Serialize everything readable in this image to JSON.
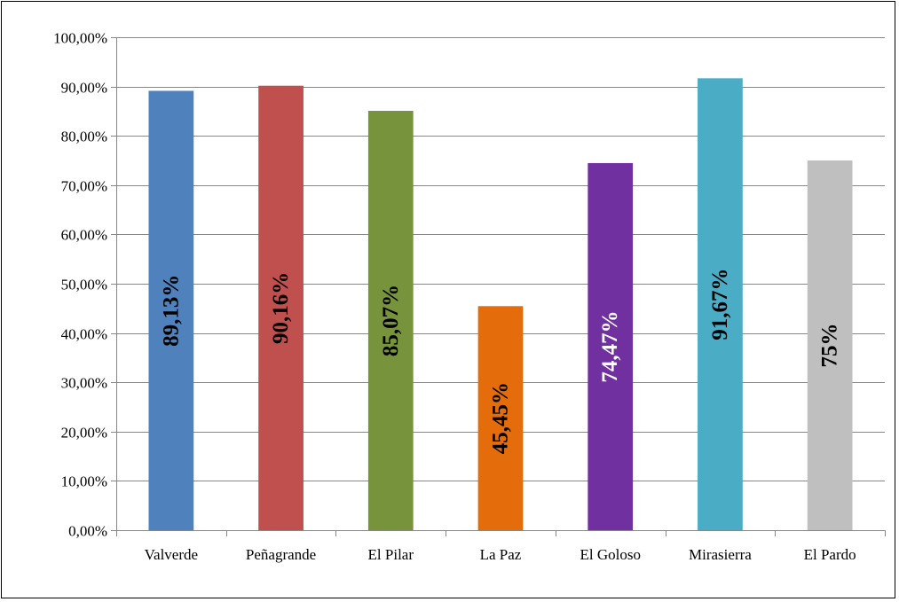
{
  "chart_data": {
    "type": "bar",
    "title": "",
    "xlabel": "",
    "ylabel": "",
    "categories": [
      "Valverde",
      "Peñagrande",
      "El Pilar",
      "La Paz",
      "El Goloso",
      "Mirasierra",
      "El Pardo"
    ],
    "values": [
      89.13,
      90.16,
      85.07,
      45.45,
      74.47,
      91.67,
      75
    ],
    "data_labels": [
      "89,13%",
      "90,16%",
      "85,07%",
      "45,45%",
      "74,47%",
      "91,67%",
      "75%"
    ],
    "bar_colors": [
      "#4f81bd",
      "#c0504d",
      "#77933c",
      "#e46c0a",
      "#7030a0",
      "#4bacc6",
      "#bfbfbf"
    ],
    "label_colors": [
      "#000000",
      "#000000",
      "#000000",
      "#000000",
      "#ffffff",
      "#000000",
      "#000000"
    ],
    "ylim": [
      0,
      100
    ],
    "yticks": [
      0,
      10,
      20,
      30,
      40,
      50,
      60,
      70,
      80,
      90,
      100
    ],
    "ytick_labels": [
      "0,00%",
      "10,00%",
      "20,00%",
      "30,00%",
      "40,00%",
      "50,00%",
      "60,00%",
      "70,00%",
      "80,00%",
      "90,00%",
      "100,00%"
    ],
    "grid": true,
    "gridline_color": "#878787",
    "legend": "none"
  }
}
